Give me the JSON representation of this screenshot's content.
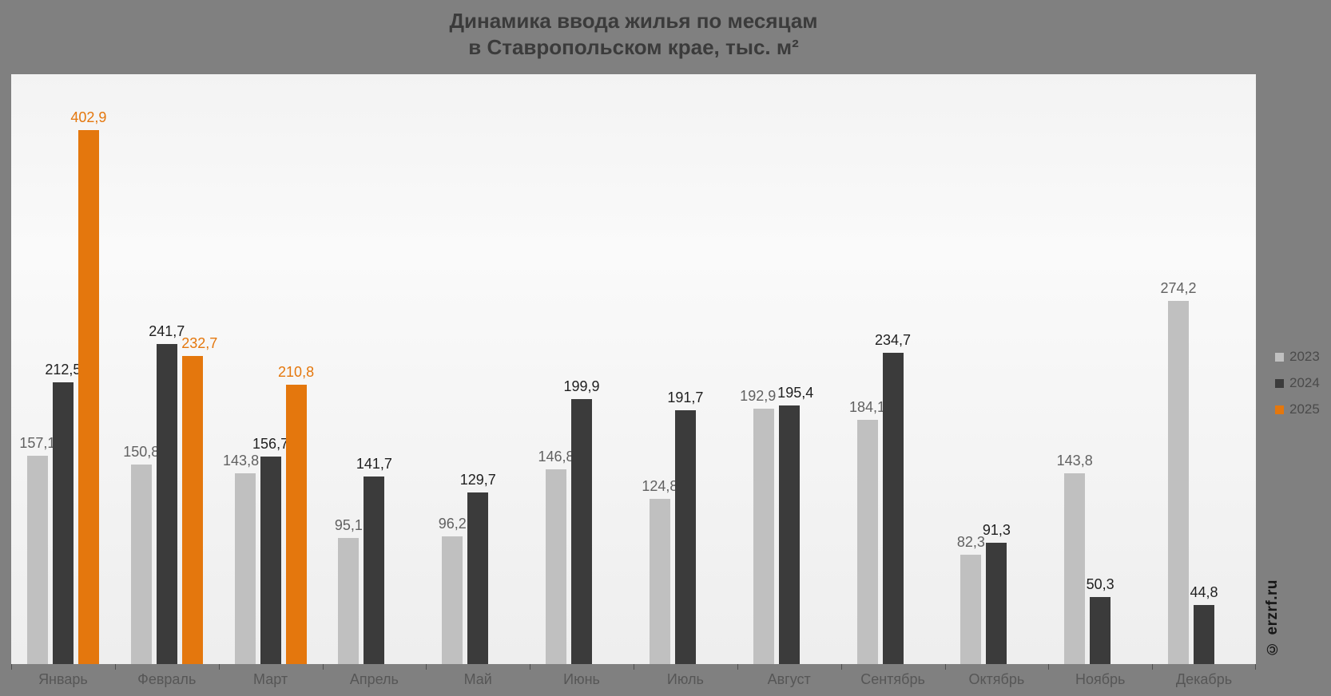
{
  "title": {
    "line1": "Динамика ввода жилья по месяцам",
    "line2": "в Ставропольском крае, тыс. м²"
  },
  "legend": {
    "items": [
      {
        "label": "2023",
        "color": "#c0c0c0"
      },
      {
        "label": "2024",
        "color": "#3b3b3b"
      },
      {
        "label": "2025",
        "color": "#e4770d"
      }
    ]
  },
  "watermark": "© erzrf.ru",
  "chart_data": {
    "type": "bar",
    "title": "Динамика ввода жилья по месяцам в Ставропольском крае, тыс. м²",
    "xlabel": "",
    "ylabel": "тыс. м²",
    "categories": [
      "Январь",
      "Февраль",
      "Март",
      "Апрель",
      "Май",
      "Июнь",
      "Июль",
      "Август",
      "Сентябрь",
      "Октябрь",
      "Ноябрь",
      "Декабрь"
    ],
    "series": [
      {
        "name": "2023",
        "color": "#c0c0c0",
        "label_color": "#616161",
        "values": [
          157.1,
          150.8,
          143.8,
          95.1,
          96.2,
          146.8,
          124.8,
          192.9,
          184.1,
          82.3,
          143.8,
          274.2
        ]
      },
      {
        "name": "2024",
        "color": "#3b3b3b",
        "label_color": "#1f1f1f",
        "values": [
          212.5,
          241.7,
          156.7,
          141.7,
          129.7,
          199.9,
          191.7,
          195.4,
          234.7,
          91.3,
          50.3,
          44.8
        ]
      },
      {
        "name": "2025",
        "color": "#e4770d",
        "label_color": "#e4770d",
        "values": [
          402.9,
          232.7,
          210.8,
          null,
          null,
          null,
          null,
          null,
          null,
          null,
          null,
          null
        ]
      }
    ],
    "ylim": [
      0,
      445
    ],
    "grid": false,
    "legend_position": "right",
    "decimal_separator": ","
  }
}
